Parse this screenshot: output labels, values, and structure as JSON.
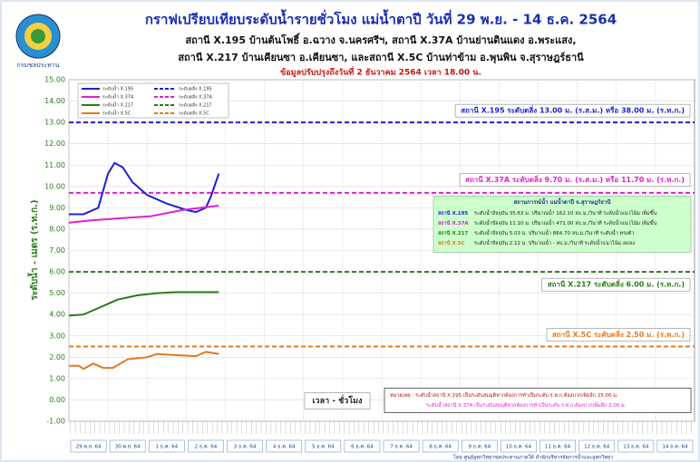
{
  "logo_text": "กรมชลประทาน",
  "chart_data": {
    "type": "line",
    "title": "กราฟเปรียบเทียบระดับน้ำรายชั่วโมง  แม่น้ำตาปี วันที่  29 พ.ย. - 14 ธ.ค. 2564",
    "subtitle": [
      "สถานี X.195 บ้านต้นโพธิ์ อ.ฉวาง จ.นครศรีฯ, สถานี X.37A บ้านย่านดินแดง อ.พระแสง,",
      "สถานี X.217 บ้านเคียนซา อ.เคียนซา, และสถานี X.5C บ้านท่าข้าม อ.พุนพิน จ.สุราษฎร์ธานี"
    ],
    "update_note": "ข้อมูลปรับปรุงถึงวันที่ 2 ธันวาคม 2564 เวลา 18.00 น.",
    "x_label": "เวลา - ชั่วโมง",
    "y_label": "ระดับน้ำ - เมตร (ร.ท.ก.)",
    "categories": [
      "29 พ.ย. 64",
      "30 พ.ย. 64",
      "1 ธ.ค. 64",
      "2 ธ.ค. 64",
      "3 ธ.ค. 64",
      "4 ธ.ค. 64",
      "5 ธ.ค. 64",
      "6 ธ.ค. 64",
      "7 ธ.ค. 64",
      "8 ธ.ค. 64",
      "9 ธ.ค. 64",
      "10 ธ.ค. 64",
      "11 ธ.ค. 64",
      "12 ธ.ค. 64",
      "13 ธ.ค. 64",
      "14 ธ.ค. 64"
    ],
    "xlim": [
      0,
      384
    ],
    "ylim": [
      -1,
      15
    ],
    "yticks": [
      {
        "value": -1,
        "label": "-1.00"
      },
      {
        "value": 0,
        "label": "0.00"
      },
      {
        "value": 1,
        "label": "1.00"
      },
      {
        "value": 2,
        "label": "2.00"
      },
      {
        "value": 3,
        "label": "3.00"
      },
      {
        "value": 4,
        "label": "4.00"
      },
      {
        "value": 5,
        "label": "5.00"
      },
      {
        "value": 6,
        "label": "6.00"
      },
      {
        "value": 7,
        "label": "7.00"
      },
      {
        "value": 8,
        "label": "8.00"
      },
      {
        "value": 9,
        "label": "9.00"
      },
      {
        "value": 10,
        "label": "10.00"
      },
      {
        "value": 11,
        "label": "11.00"
      },
      {
        "value": 12,
        "label": "12.00"
      },
      {
        "value": 13,
        "label": "13.00"
      },
      {
        "value": 14,
        "label": "14.00"
      },
      {
        "value": 15,
        "label": "15.00"
      }
    ],
    "grid": true,
    "series": [
      {
        "name": "ระดับน้ำ X.195",
        "color": "#1f1fd6",
        "x": [
          0,
          9,
          18,
          24,
          28,
          33,
          39,
          48,
          60,
          72,
          78,
          84,
          87,
          92
        ],
        "values": [
          8.7,
          8.7,
          9.0,
          10.6,
          11.1,
          10.9,
          10.2,
          9.6,
          9.2,
          8.9,
          8.8,
          9.0,
          9.5,
          10.6
        ]
      },
      {
        "name": "ระดับน้ำ X.37A",
        "color": "#e020d0",
        "x": [
          0,
          12,
          30,
          50,
          70,
          92
        ],
        "values": [
          8.3,
          8.4,
          8.5,
          8.6,
          8.9,
          9.1
        ]
      },
      {
        "name": "ระดับน้ำ X.217",
        "color": "#2a7a1a",
        "x": [
          0,
          9,
          18,
          30,
          42,
          54,
          66,
          92
        ],
        "values": [
          3.95,
          4.0,
          4.3,
          4.7,
          4.9,
          5.0,
          5.05,
          5.05
        ]
      },
      {
        "name": "ระดับน้ำ X.5C",
        "color": "#e07a20",
        "x": [
          0,
          6,
          9,
          15,
          21,
          27,
          36,
          48,
          54,
          66,
          78,
          84,
          92
        ],
        "values": [
          1.6,
          1.6,
          1.45,
          1.7,
          1.5,
          1.5,
          1.9,
          2.0,
          2.15,
          2.1,
          2.05,
          2.25,
          2.15
        ]
      }
    ],
    "bank_levels": [
      {
        "name": "ระดับตลิ่ง X.195",
        "color": "#1f1fd6",
        "value": 13,
        "label": "สถานี X.195 ระดับตลิ่ง 13.00 ม. (ร.ส.ม.) หรือ 38.00 ม. (ร.ท.ก.)"
      },
      {
        "name": "ระดับตลิ่ง X.37A",
        "color": "#e020d0",
        "value": 9.7,
        "label": "สถานี X.37A ระดับตลิ่ง 9.70 ม. (ร.ส.ม.) หรือ 11.70 ม. (ร.ท.ก.)"
      },
      {
        "name": "ระดับตลิ่ง X.217",
        "color": "#2a7a1a",
        "value": 6,
        "label": "สถานี X.217 ระดับตลิ่ง 6.00 ม. (ร.ท.ก.)"
      },
      {
        "name": "ระดับตลิ่ง X.5C",
        "color": "#e07a20",
        "value": 2.5,
        "label": "สถานี X.5C ระดับตลิ่ง 2.50 ม. (ร.ท.ก.)"
      }
    ],
    "info_box": {
      "title": "สถานการณ์น้ำ แม่น้ำตาปี จ.สุราษฎร์ธานี",
      "rows": [
        {
          "station": "สถานี X.195",
          "color": "#1f1fd6",
          "text": "ระดับน้ำปัจจุบัน 35.63 ม. ปริมาณน้ำ 162.10 ลบ.ม./วินาที ระดับน้ำแนวโน้ม เพิ่มขึ้น"
        },
        {
          "station": "สถานี X.37A",
          "color": "#e020d0",
          "text": "ระดับน้ำปัจจุบัน 11.10 ม. ปริมาณน้ำ 471.00 ลบ.ม./วินาที ระดับน้ำแนวโน้ม เพิ่มขึ้น"
        },
        {
          "station": "สถานี X.217",
          "color": "#2a7a1a",
          "text": "ระดับน้ำปัจจุบัน 5.03 ม. ปริมาณน้ำ 864.70 ลบ.ม./วินาที ระดับน้ำ ทรงตัว"
        },
        {
          "station": "สถานี X.5C",
          "color": "#e07a20",
          "text": "ระดับน้ำปัจจุบัน 2.12 ม. ปริมาณน้ำ - ลบ.ม./วินาที ระดับน้ำแนวโน้ม ลดลง"
        }
      ]
    },
    "note": [
      "หมายเหตุ : ระดับน้ำสถานี X.195 เป็นระดับสมมุติหากต้องการทำเป็นระดับ ร.ท.ก.ต้องบวกเพิ่มอีก 25.00 ม.",
      "ระดับน้ำสถานี X.37A เป็นระดับสมมุติหากต้องการทำเป็นระดับ ร.ท.ก.ต้องบวกเพิ่มอีก 2.00 ม."
    ],
    "footer": "โดย ศูนย์อุทกวิทยาชลประทานภาคใต้ สำนักบริหารจัดการน้ำและอุทกวิทยา"
  }
}
